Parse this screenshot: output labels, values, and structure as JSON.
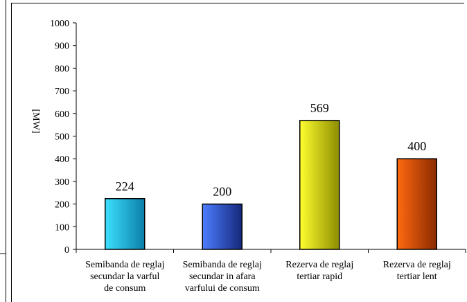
{
  "chart_data": {
    "type": "bar",
    "title": "",
    "xlabel": "",
    "ylabel": "[MW]",
    "ylim": [
      0,
      1000
    ],
    "yticks": [
      0,
      100,
      200,
      300,
      400,
      500,
      600,
      700,
      800,
      900,
      1000
    ],
    "grid": false,
    "legend": "none",
    "categories": [
      [
        "Semibanda de reglaj",
        "secundar la varful",
        "de consum"
      ],
      [
        "Semibanda de reglaj",
        "secundar in afara",
        "varfului de consum"
      ],
      [
        "Rezerva de reglaj",
        "tertiar rapid"
      ],
      [
        "Rezerva de reglaj",
        "tertiar lent"
      ]
    ],
    "values": [
      224,
      200,
      569,
      400
    ],
    "value_labels": [
      "224",
      "200",
      "569",
      "400"
    ],
    "bar_gradients": [
      [
        "#3ee0ff",
        "#0a7fa8"
      ],
      [
        "#4d7dff",
        "#14287a"
      ],
      [
        "#ffff30",
        "#8c8c00"
      ],
      [
        "#ff6a10",
        "#8a2a00"
      ]
    ]
  }
}
